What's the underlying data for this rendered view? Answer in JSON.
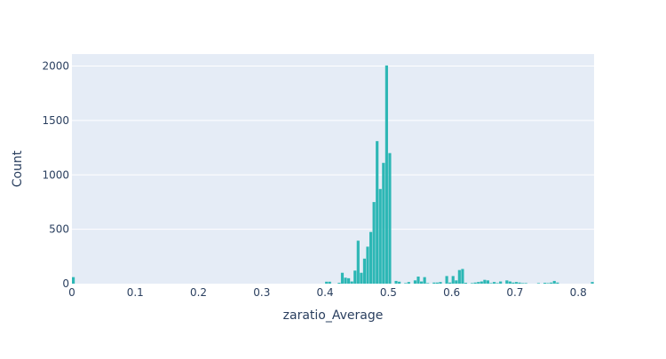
{
  "chart_data": {
    "type": "bar",
    "title": "",
    "xlabel": "zaratio_Average",
    "ylabel": "Count",
    "xlim": [
      0,
      0.825
    ],
    "ylim": [
      0,
      2000
    ],
    "bin_width": 0.005,
    "x_ticks": [
      "0",
      "0.1",
      "0.2",
      "0.3",
      "0.4",
      "0.5",
      "0.6",
      "0.7",
      "0.8"
    ],
    "y_ticks": [
      "0",
      "500",
      "1000",
      "1500",
      "2000"
    ],
    "grid": true,
    "legend": "none",
    "colors": {
      "bar": "#2db7b5",
      "plot_bg": "#e5ecf6",
      "grid": "#ffffff",
      "text": "#2a3f5f"
    },
    "x": [
      0.0025,
      0.4025,
      0.4075,
      0.4225,
      0.4275,
      0.4325,
      0.4375,
      0.4425,
      0.4475,
      0.4525,
      0.4575,
      0.4625,
      0.4675,
      0.4725,
      0.4775,
      0.4825,
      0.4875,
      0.4925,
      0.4975,
      0.5025,
      0.5125,
      0.5175,
      0.5275,
      0.5325,
      0.5425,
      0.5475,
      0.5525,
      0.5575,
      0.5625,
      0.5725,
      0.5775,
      0.5825,
      0.5925,
      0.5975,
      0.6025,
      0.6075,
      0.6125,
      0.6175,
      0.6225,
      0.6325,
      0.6375,
      0.6425,
      0.6475,
      0.6525,
      0.6575,
      0.6625,
      0.6675,
      0.6725,
      0.6775,
      0.6875,
      0.6925,
      0.6975,
      0.7025,
      0.7075,
      0.7125,
      0.7175,
      0.7375,
      0.7475,
      0.7525,
      0.7575,
      0.7625,
      0.7675,
      0.8225
    ],
    "values": [
      60,
      18,
      18,
      8,
      100,
      55,
      50,
      20,
      120,
      395,
      100,
      230,
      340,
      475,
      750,
      1310,
      870,
      1110,
      2005,
      1200,
      25,
      18,
      5,
      15,
      30,
      65,
      20,
      60,
      5,
      10,
      10,
      15,
      70,
      10,
      70,
      30,
      125,
      135,
      8,
      5,
      10,
      15,
      20,
      35,
      30,
      5,
      15,
      5,
      20,
      30,
      20,
      10,
      15,
      10,
      5,
      5,
      5,
      8,
      5,
      10,
      25,
      10,
      15
    ]
  }
}
